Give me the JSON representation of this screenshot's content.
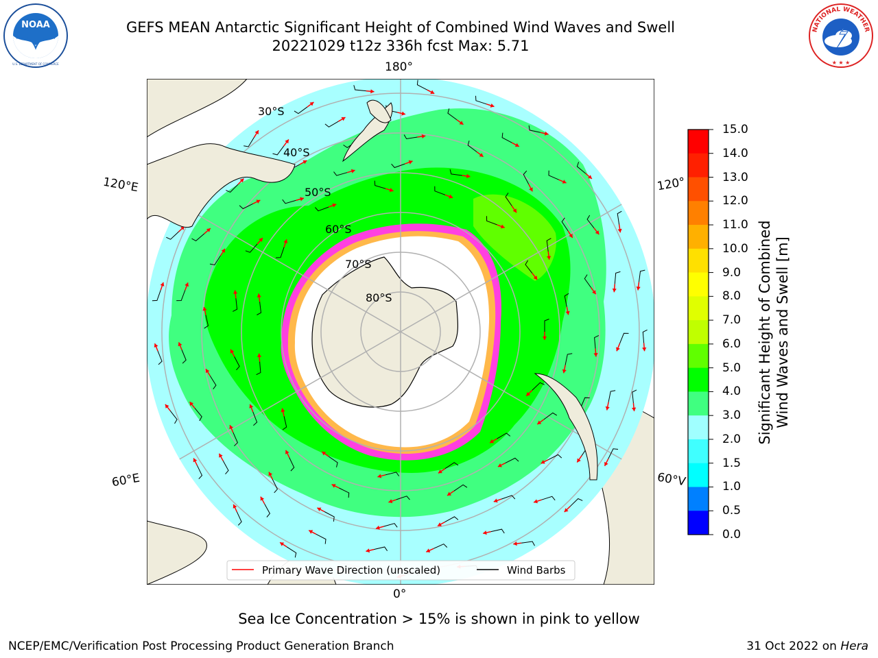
{
  "header": {
    "title_line1": "GEFS MEAN Antarctic Significant Height of Combined Wind Waves and Swell",
    "title_line2": "20221029 t12z 336h fcst   Max: 5.71"
  },
  "logos": {
    "noaa_text": "NOAA",
    "noaa_ring_text": "NATIONAL OCEANIC AND ATMOSPHERIC ADMINISTRATION · U.S. DEPARTMENT OF COMMERCE",
    "nws_ring_text": "NATIONAL WEATHER SERVICE"
  },
  "map": {
    "longitude_labels": [
      "180°",
      "0°",
      "120°E",
      "60°E",
      "120°",
      "60°V"
    ],
    "latitude_labels": [
      "30°S",
      "40°S",
      "50°S",
      "60°S",
      "70°S",
      "80°S"
    ],
    "legend": {
      "wave_direction": "Primary Wave Direction (unscaled)",
      "wind_barbs": "Wind Barbs"
    },
    "colors": {
      "ocean": "#a8ffff",
      "land": "#efecdc",
      "ice": "#ffffff",
      "wave_arrow": "#ff0000",
      "barb": "#000000"
    }
  },
  "colorbar": {
    "label_line1": "Significant Height of Combined",
    "label_line2": "Wind Waves and Swell [m]",
    "ticks": [
      "0.0",
      "0.5",
      "1.0",
      "1.5",
      "2.0",
      "3.0",
      "4.0",
      "5.0",
      "6.0",
      "7.0",
      "8.0",
      "9.0",
      "10.0",
      "11.0",
      "12.0",
      "13.0",
      "14.0",
      "15.0"
    ],
    "colors": [
      "#0000ff",
      "#0080ff",
      "#00ffff",
      "#40ffff",
      "#a0ffff",
      "#40ff80",
      "#00ff00",
      "#60ff00",
      "#c0ff00",
      "#e0ff00",
      "#ffff00",
      "#ffe000",
      "#ffb000",
      "#ff8000",
      "#ff5000",
      "#ff2000",
      "#ff0000"
    ]
  },
  "footer": {
    "ice_note": "Sea Ice Concentration > 15% is shown in pink to yellow",
    "left": "NCEP/EMC/Verification Post Processing Product Generation Branch",
    "right_date": "31 Oct 2022 on",
    "right_host": "Hera"
  }
}
